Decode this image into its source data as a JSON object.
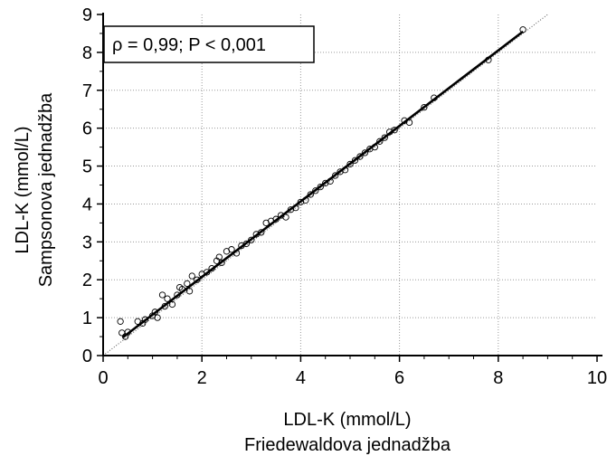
{
  "chart_data": {
    "type": "scatter",
    "xlabel_lines": [
      "LDL-K (mmol/L)",
      "Friedewaldova jednadžba"
    ],
    "ylabel_lines": [
      "LDL-K (mmol/L)",
      "Sampsonova jednadžba"
    ],
    "xlim": [
      0,
      10
    ],
    "ylim": [
      0,
      9
    ],
    "x_ticks": [
      "0",
      "2",
      "4",
      "6",
      "8",
      "10"
    ],
    "y_ticks": [
      "0",
      "1",
      "2",
      "3",
      "4",
      "5",
      "6",
      "7",
      "8",
      "9"
    ],
    "grid": "dotted",
    "annotation": "ρ = 0,99; P < 0,001",
    "annotation_position": "top-left",
    "fit_line": {
      "x": [
        0.4,
        8.5
      ],
      "y": [
        0.48,
        8.55
      ]
    },
    "identity_line": {
      "x": [
        0,
        9
      ],
      "y": [
        0,
        9
      ]
    },
    "points": [
      {
        "x": 0.35,
        "y": 0.9
      },
      {
        "x": 0.38,
        "y": 0.6
      },
      {
        "x": 0.45,
        "y": 0.5
      },
      {
        "x": 0.5,
        "y": 0.62
      },
      {
        "x": 0.7,
        "y": 0.9
      },
      {
        "x": 0.8,
        "y": 0.85
      },
      {
        "x": 0.85,
        "y": 0.95
      },
      {
        "x": 1.0,
        "y": 1.05
      },
      {
        "x": 1.05,
        "y": 1.15
      },
      {
        "x": 1.1,
        "y": 1.0
      },
      {
        "x": 1.2,
        "y": 1.6
      },
      {
        "x": 1.25,
        "y": 1.3
      },
      {
        "x": 1.3,
        "y": 1.5
      },
      {
        "x": 1.4,
        "y": 1.35
      },
      {
        "x": 1.5,
        "y": 1.6
      },
      {
        "x": 1.55,
        "y": 1.8
      },
      {
        "x": 1.6,
        "y": 1.75
      },
      {
        "x": 1.7,
        "y": 1.9
      },
      {
        "x": 1.75,
        "y": 1.7
      },
      {
        "x": 1.8,
        "y": 2.1
      },
      {
        "x": 1.9,
        "y": 2.0
      },
      {
        "x": 2.0,
        "y": 2.15
      },
      {
        "x": 2.1,
        "y": 2.2
      },
      {
        "x": 2.2,
        "y": 2.3
      },
      {
        "x": 2.3,
        "y": 2.5
      },
      {
        "x": 2.35,
        "y": 2.6
      },
      {
        "x": 2.4,
        "y": 2.45
      },
      {
        "x": 2.5,
        "y": 2.75
      },
      {
        "x": 2.6,
        "y": 2.8
      },
      {
        "x": 2.7,
        "y": 2.7
      },
      {
        "x": 2.8,
        "y": 2.9
      },
      {
        "x": 2.9,
        "y": 2.95
      },
      {
        "x": 3.0,
        "y": 3.05
      },
      {
        "x": 3.1,
        "y": 3.2
      },
      {
        "x": 3.2,
        "y": 3.25
      },
      {
        "x": 3.3,
        "y": 3.5
      },
      {
        "x": 3.4,
        "y": 3.55
      },
      {
        "x": 3.5,
        "y": 3.6
      },
      {
        "x": 3.6,
        "y": 3.7
      },
      {
        "x": 3.7,
        "y": 3.65
      },
      {
        "x": 3.8,
        "y": 3.85
      },
      {
        "x": 3.9,
        "y": 3.9
      },
      {
        "x": 4.0,
        "y": 4.05
      },
      {
        "x": 4.1,
        "y": 4.1
      },
      {
        "x": 4.2,
        "y": 4.25
      },
      {
        "x": 4.3,
        "y": 4.35
      },
      {
        "x": 4.4,
        "y": 4.45
      },
      {
        "x": 4.5,
        "y": 4.55
      },
      {
        "x": 4.6,
        "y": 4.6
      },
      {
        "x": 4.7,
        "y": 4.75
      },
      {
        "x": 4.8,
        "y": 4.85
      },
      {
        "x": 4.9,
        "y": 4.9
      },
      {
        "x": 5.0,
        "y": 5.05
      },
      {
        "x": 5.1,
        "y": 5.15
      },
      {
        "x": 5.2,
        "y": 5.25
      },
      {
        "x": 5.3,
        "y": 5.35
      },
      {
        "x": 5.4,
        "y": 5.45
      },
      {
        "x": 5.5,
        "y": 5.5
      },
      {
        "x": 5.6,
        "y": 5.65
      },
      {
        "x": 5.7,
        "y": 5.75
      },
      {
        "x": 5.8,
        "y": 5.9
      },
      {
        "x": 5.9,
        "y": 5.95
      },
      {
        "x": 6.1,
        "y": 6.2
      },
      {
        "x": 6.2,
        "y": 6.15
      },
      {
        "x": 6.5,
        "y": 6.55
      },
      {
        "x": 6.7,
        "y": 6.8
      },
      {
        "x": 7.8,
        "y": 7.8
      },
      {
        "x": 8.5,
        "y": 8.6
      }
    ]
  }
}
